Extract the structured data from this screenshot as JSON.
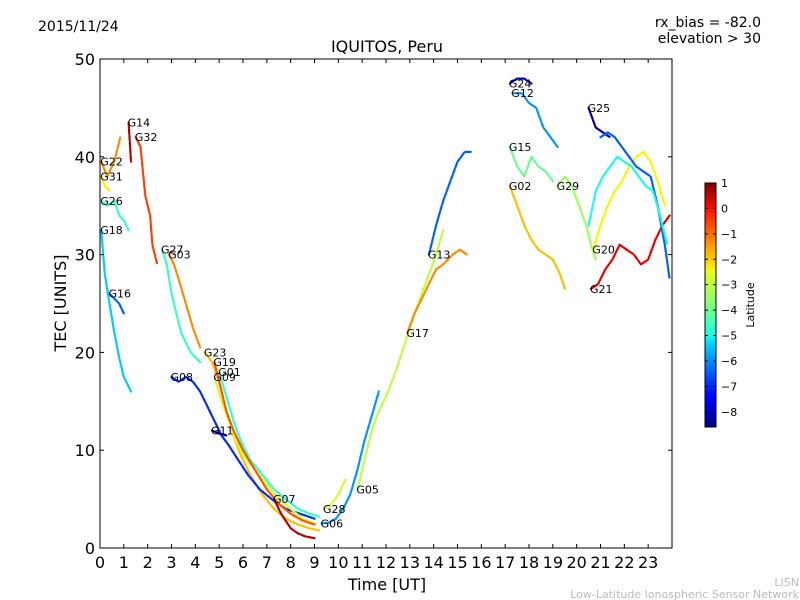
{
  "header": {
    "date": "2015/11/24",
    "title": "IQUITOS, Peru",
    "rx_bias": "rx_bias = -82.0",
    "elevation": "elevation > 30"
  },
  "footer": {
    "line1": "LISN",
    "line2": "Low-Latitude Ionospheric Sensor Network"
  },
  "colorbar": {
    "label": "Latitude",
    "ticks": [
      "1",
      "0",
      "−1",
      "−2",
      "−3",
      "−4",
      "−5",
      "−6",
      "−7",
      "−8"
    ],
    "range": [
      -8.6,
      1.0
    ],
    "colormap": "jet"
  },
  "chart_data": {
    "type": "scatter",
    "title": "IQUITOS, Peru",
    "xlabel": "Time [UT]",
    "ylabel": "TEC [UNITS]",
    "xlim": [
      0,
      24
    ],
    "ylim": [
      0,
      50
    ],
    "xticks": [
      0,
      1,
      2,
      3,
      4,
      5,
      6,
      7,
      8,
      9,
      10,
      11,
      12,
      13,
      14,
      15,
      16,
      17,
      18,
      19,
      20,
      21,
      22,
      23
    ],
    "yticks": [
      0,
      10,
      20,
      30,
      40,
      50
    ],
    "grid": false,
    "series": [
      {
        "name": "G22",
        "lat": -1.5,
        "points": [
          [
            0.05,
            39.5
          ],
          [
            0.3,
            38
          ],
          [
            0.6,
            39.5
          ],
          [
            0.85,
            42
          ]
        ]
      },
      {
        "name": "G31",
        "lat": -2.5,
        "points": [
          [
            0.05,
            38
          ],
          [
            0.2,
            37
          ],
          [
            0.4,
            36.5
          ]
        ]
      },
      {
        "name": "G26",
        "lat": -4.5,
        "points": [
          [
            0.05,
            35.5
          ],
          [
            0.3,
            35
          ],
          [
            0.6,
            35.5
          ],
          [
            0.8,
            34
          ],
          [
            1.0,
            33.5
          ],
          [
            1.2,
            32.5
          ]
        ]
      },
      {
        "name": "G18",
        "lat": -5.5,
        "points": [
          [
            0.05,
            32.5
          ],
          [
            0.2,
            28
          ],
          [
            0.4,
            25
          ],
          [
            0.6,
            22
          ],
          [
            0.8,
            19.5
          ],
          [
            1.0,
            17.5
          ],
          [
            1.3,
            16
          ]
        ]
      },
      {
        "name": "G16",
        "lat": -6.5,
        "points": [
          [
            0.4,
            26
          ],
          [
            0.6,
            25.5
          ],
          [
            0.8,
            25
          ],
          [
            1.0,
            24
          ]
        ]
      },
      {
        "name": "G14",
        "lat": 0.5,
        "points": [
          [
            1.2,
            43.5
          ],
          [
            1.25,
            41.5
          ],
          [
            1.3,
            39.5
          ]
        ]
      },
      {
        "name": "G32",
        "lat": -0.8,
        "points": [
          [
            1.5,
            42
          ],
          [
            1.7,
            41
          ],
          [
            1.9,
            36
          ],
          [
            2.1,
            34
          ],
          [
            2.2,
            31
          ],
          [
            2.4,
            29
          ]
        ]
      },
      {
        "name": "G03",
        "lat": -1.5,
        "points": [
          [
            2.9,
            30
          ],
          [
            3.1,
            29
          ],
          [
            3.3,
            27.5
          ],
          [
            3.6,
            25
          ],
          [
            3.9,
            22.5
          ],
          [
            4.2,
            20.5
          ]
        ]
      },
      {
        "name": "G27",
        "lat": -4.5,
        "points": [
          [
            2.6,
            30.5
          ],
          [
            2.8,
            29
          ],
          [
            3.0,
            26
          ],
          [
            3.2,
            24
          ],
          [
            3.4,
            22
          ],
          [
            3.8,
            20
          ],
          [
            4.2,
            19
          ]
        ]
      },
      {
        "name": "G23",
        "lat": -2.0,
        "points": [
          [
            4.4,
            20
          ],
          [
            4.7,
            19
          ],
          [
            5.0,
            17
          ],
          [
            5.3,
            14
          ],
          [
            5.6,
            11.5
          ],
          [
            5.9,
            9.5
          ],
          [
            6.3,
            7.5
          ],
          [
            6.8,
            5.5
          ],
          [
            7.3,
            4
          ],
          [
            7.8,
            3
          ],
          [
            8.3,
            2.4
          ],
          [
            8.8,
            2
          ],
          [
            9.2,
            1.8
          ]
        ]
      },
      {
        "name": "G08",
        "lat": -7.0,
        "points": [
          [
            3.0,
            17.5
          ],
          [
            3.3,
            17
          ],
          [
            3.6,
            17.5
          ],
          [
            3.9,
            17
          ],
          [
            4.2,
            16
          ],
          [
            4.5,
            14.5
          ],
          [
            4.8,
            13
          ],
          [
            5.1,
            11.5
          ],
          [
            5.4,
            10.5
          ],
          [
            5.8,
            9
          ],
          [
            6.2,
            7.5
          ],
          [
            6.7,
            6
          ],
          [
            7.2,
            5
          ],
          [
            7.8,
            4
          ],
          [
            8.4,
            3.5
          ],
          [
            9.0,
            3
          ]
        ]
      },
      {
        "name": "G09",
        "lat": -3.0,
        "points": [
          [
            4.8,
            17.5
          ],
          [
            5.1,
            15
          ],
          [
            5.4,
            13
          ],
          [
            5.7,
            11
          ],
          [
            6.0,
            9.5
          ],
          [
            6.5,
            8
          ],
          [
            7.0,
            6.5
          ],
          [
            7.5,
            5
          ],
          [
            8.0,
            4
          ],
          [
            8.5,
            3
          ],
          [
            9.0,
            2.5
          ]
        ]
      },
      {
        "name": "G11",
        "lat": -8.3,
        "points": [
          [
            4.7,
            12
          ],
          [
            5.0,
            11.7
          ],
          [
            5.3,
            11.5
          ]
        ]
      },
      {
        "name": "G01",
        "lat": -4.5,
        "points": [
          [
            5.0,
            18
          ],
          [
            5.3,
            15.5
          ],
          [
            5.6,
            13
          ],
          [
            5.9,
            11
          ],
          [
            6.3,
            9
          ],
          [
            6.8,
            7.5
          ],
          [
            7.3,
            6
          ],
          [
            7.8,
            5
          ],
          [
            8.3,
            4
          ],
          [
            8.8,
            3.5
          ],
          [
            9.2,
            3.2
          ]
        ]
      },
      {
        "name": "G19",
        "lat": -1.0,
        "points": [
          [
            4.8,
            19
          ],
          [
            5.0,
            17
          ],
          [
            5.3,
            14
          ],
          [
            5.6,
            12
          ],
          [
            6.0,
            10
          ],
          [
            6.5,
            8
          ],
          [
            7.0,
            6
          ],
          [
            7.5,
            4.5
          ],
          [
            8.0,
            3.5
          ],
          [
            8.5,
            2.8
          ],
          [
            9.0,
            2.4
          ]
        ]
      },
      {
        "name": "G07",
        "lat": 0.5,
        "points": [
          [
            7.3,
            5
          ],
          [
            7.6,
            3.5
          ],
          [
            8.0,
            2
          ],
          [
            8.3,
            1.5
          ],
          [
            8.6,
            1.2
          ],
          [
            9.0,
            1
          ]
        ]
      },
      {
        "name": "G06",
        "lat": -6.0,
        "points": [
          [
            9.3,
            2.5
          ],
          [
            9.6,
            2.6
          ],
          [
            9.9,
            3
          ],
          [
            10.2,
            4
          ],
          [
            10.5,
            5.5
          ],
          [
            10.8,
            8
          ],
          [
            11.1,
            11
          ],
          [
            11.4,
            13.5
          ],
          [
            11.7,
            16
          ]
        ]
      },
      {
        "name": "G28",
        "lat": -3.0,
        "points": [
          [
            9.4,
            4
          ],
          [
            9.7,
            4.5
          ],
          [
            10.0,
            5.5
          ],
          [
            10.3,
            7
          ]
        ]
      },
      {
        "name": "G05",
        "lat": -3.2,
        "points": [
          [
            10.8,
            6
          ],
          [
            11.1,
            9
          ],
          [
            11.4,
            12
          ],
          [
            11.7,
            14
          ],
          [
            12.0,
            15.5
          ],
          [
            12.4,
            18
          ],
          [
            12.8,
            21
          ],
          [
            13.2,
            24
          ],
          [
            13.5,
            26
          ],
          [
            13.8,
            28
          ],
          [
            14.1,
            30
          ],
          [
            14.4,
            32.5
          ]
        ]
      },
      {
        "name": "G17",
        "lat": -1.5,
        "points": [
          [
            12.9,
            22
          ],
          [
            13.2,
            24
          ],
          [
            13.5,
            25.5
          ],
          [
            13.8,
            27
          ],
          [
            14.1,
            28.5
          ],
          [
            14.4,
            29
          ],
          [
            14.8,
            30
          ],
          [
            15.1,
            30.5
          ],
          [
            15.4,
            30
          ]
        ]
      },
      {
        "name": "G13",
        "lat": -6.5,
        "points": [
          [
            13.8,
            30
          ],
          [
            14.1,
            33
          ],
          [
            14.4,
            35.5
          ],
          [
            14.7,
            37.5
          ],
          [
            15.0,
            39.5
          ],
          [
            15.3,
            40.5
          ],
          [
            15.6,
            40.5
          ]
        ]
      },
      {
        "name": "G24",
        "lat": -7.8,
        "points": [
          [
            17.2,
            47.5
          ],
          [
            17.5,
            48
          ],
          [
            17.8,
            48
          ],
          [
            18.1,
            47.5
          ]
        ]
      },
      {
        "name": "G12",
        "lat": -6.0,
        "points": [
          [
            17.3,
            46.5
          ],
          [
            17.7,
            46.5
          ],
          [
            18.0,
            45.5
          ],
          [
            18.3,
            45
          ],
          [
            18.6,
            43
          ],
          [
            18.9,
            42
          ],
          [
            19.2,
            41
          ]
        ]
      },
      {
        "name": "G15",
        "lat": -4.0,
        "points": [
          [
            17.2,
            41
          ],
          [
            17.5,
            39
          ],
          [
            17.8,
            38
          ],
          [
            18.1,
            40
          ],
          [
            18.4,
            39
          ],
          [
            18.7,
            38.5
          ],
          [
            19.0,
            37.5
          ]
        ]
      },
      {
        "name": "G02",
        "lat": -2.0,
        "points": [
          [
            17.2,
            37
          ],
          [
            17.5,
            35
          ],
          [
            17.8,
            33
          ],
          [
            18.1,
            31.5
          ],
          [
            18.4,
            30.5
          ],
          [
            18.7,
            30
          ],
          [
            19.0,
            29.5
          ],
          [
            19.3,
            28
          ],
          [
            19.5,
            26.5
          ]
        ]
      },
      {
        "name": "G29",
        "lat": -3.5,
        "points": [
          [
            19.2,
            37
          ],
          [
            19.5,
            38
          ],
          [
            19.8,
            37
          ],
          [
            20.1,
            35
          ],
          [
            20.4,
            33
          ],
          [
            20.6,
            31
          ],
          [
            20.8,
            29.5
          ]
        ]
      },
      {
        "name": "G25",
        "lat": -8.3,
        "points": [
          [
            20.5,
            45
          ],
          [
            20.8,
            43
          ],
          [
            21.1,
            42.5
          ],
          [
            21.4,
            42
          ]
        ]
      },
      {
        "name": "G20",
        "lat": -2.5,
        "points": [
          [
            20.7,
            30.5
          ],
          [
            21.0,
            33
          ],
          [
            21.3,
            35
          ],
          [
            21.6,
            36.5
          ],
          [
            21.9,
            37.5
          ],
          [
            22.2,
            39
          ],
          [
            22.5,
            40
          ],
          [
            22.8,
            40.5
          ],
          [
            23.1,
            39.5
          ],
          [
            23.4,
            37.5
          ],
          [
            23.7,
            35
          ]
        ]
      },
      {
        "name": "G21",
        "lat": 0.0,
        "points": [
          [
            20.6,
            26.5
          ],
          [
            20.9,
            27
          ],
          [
            21.2,
            28.5
          ],
          [
            21.5,
            29.5
          ],
          [
            21.8,
            31
          ],
          [
            22.1,
            30.5
          ],
          [
            22.4,
            30
          ],
          [
            22.7,
            29
          ],
          [
            23.0,
            29.5
          ],
          [
            23.3,
            31.5
          ],
          [
            23.6,
            33
          ],
          [
            23.9,
            34
          ]
        ]
      },
      {
        "name": "",
        "lat": -6.5,
        "points": [
          [
            21.0,
            42
          ],
          [
            21.3,
            42.5
          ],
          [
            21.6,
            42
          ],
          [
            21.9,
            41
          ],
          [
            22.2,
            40
          ],
          [
            22.5,
            39
          ],
          [
            22.8,
            38.5
          ],
          [
            23.1,
            38
          ],
          [
            23.4,
            35
          ],
          [
            23.7,
            31
          ],
          [
            23.9,
            27.5
          ]
        ]
      },
      {
        "name": "",
        "lat": -4.8,
        "points": [
          [
            20.5,
            33
          ],
          [
            20.8,
            36.5
          ],
          [
            21.1,
            38
          ],
          [
            21.4,
            39
          ],
          [
            21.7,
            40
          ],
          [
            22.0,
            39.5
          ],
          [
            22.3,
            39
          ],
          [
            22.6,
            38
          ],
          [
            22.9,
            37
          ],
          [
            23.2,
            36.5
          ],
          [
            23.5,
            34
          ],
          [
            23.8,
            31
          ]
        ]
      }
    ]
  }
}
